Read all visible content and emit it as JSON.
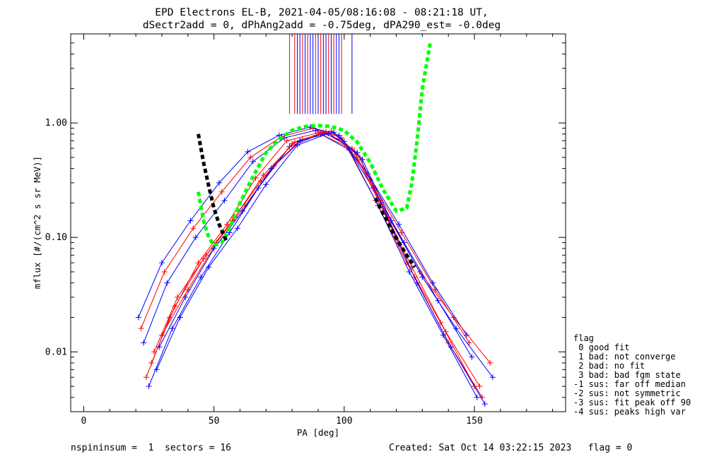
{
  "title_line1": "EPD Electrons EL-B, 2021-04-05/08:16:08 - 08:21:18 UT,",
  "title_line2": "dSectr2add = 0, dPhAng2add = -0.75deg, dPA290_est=  -0.0deg",
  "footer": {
    "left": "nspininsum =  1  sectors = 16",
    "right": "Created: Sat Oct 14 03:22:15 2023   flag = 0"
  },
  "legend": {
    "title": "flag",
    "items": [
      " 0 good fit",
      " 1 bad: not converge",
      " 2 bad: no fit",
      " 3 bad: bad fgm state",
      "-1 sus: far off median",
      "-2 sus: not symmetric",
      "-3 sus: fit peak off 90",
      "-4 sus: peaks high var"
    ]
  },
  "colors": {
    "red_series": "#ff0000",
    "blue_series": "#0000ff",
    "fit_green": "#00ff00",
    "fit_black": "#000000"
  },
  "chart_data": {
    "type": "line",
    "xlabel": "PA [deg]",
    "ylabel": "mflux [#/(cm^2 s sr MeV)]",
    "xlim": [
      -5,
      185
    ],
    "ylim": [
      0.003,
      6.0
    ],
    "yscale": "log",
    "xticks": [
      0,
      50,
      100,
      150
    ],
    "xticklabels": [
      "0",
      "50",
      "100",
      "150"
    ],
    "yticks": [
      0.01,
      0.1,
      1.0
    ],
    "yticklabels": [
      "0.01",
      "0.10",
      "1.00"
    ],
    "grid": false,
    "legend_position": "right-bottom, outside plot",
    "series": [
      {
        "color": "red",
        "x": [
          24,
          33,
          44,
          55,
          66,
          78,
          90,
          101,
          112,
          124,
          137,
          150
        ],
        "y": [
          0.006,
          0.02,
          0.06,
          0.13,
          0.33,
          0.7,
          0.82,
          0.62,
          0.21,
          0.06,
          0.018,
          0.005
        ]
      },
      {
        "color": "blue",
        "x": [
          23,
          32,
          43,
          54,
          65,
          77,
          89,
          100,
          111,
          123,
          136,
          149
        ],
        "y": [
          0.012,
          0.04,
          0.1,
          0.21,
          0.46,
          0.74,
          0.86,
          0.69,
          0.27,
          0.09,
          0.028,
          0.009
        ]
      },
      {
        "color": "red",
        "x": [
          22,
          31,
          42,
          53,
          64,
          76,
          88,
          99,
          110,
          122,
          135,
          148
        ],
        "y": [
          0.016,
          0.05,
          0.12,
          0.25,
          0.5,
          0.76,
          0.9,
          0.74,
          0.32,
          0.11,
          0.035,
          0.012
        ]
      },
      {
        "color": "blue",
        "x": [
          25,
          34,
          45,
          56,
          67,
          79,
          91,
          102,
          113,
          125,
          138,
          151
        ],
        "y": [
          0.005,
          0.016,
          0.045,
          0.11,
          0.27,
          0.62,
          0.8,
          0.58,
          0.19,
          0.05,
          0.014,
          0.004
        ]
      },
      {
        "color": "red",
        "x": [
          27,
          36,
          47,
          58,
          69,
          81,
          93,
          104,
          115,
          127,
          140,
          153
        ],
        "y": [
          0.01,
          0.03,
          0.07,
          0.15,
          0.35,
          0.68,
          0.84,
          0.56,
          0.17,
          0.045,
          0.012,
          0.004
        ]
      },
      {
        "color": "blue",
        "x": [
          21,
          30,
          41,
          52,
          63,
          75,
          87,
          98,
          109,
          121,
          134,
          147
        ],
        "y": [
          0.02,
          0.06,
          0.14,
          0.3,
          0.56,
          0.78,
          0.92,
          0.78,
          0.36,
          0.13,
          0.04,
          0.014
        ]
      },
      {
        "color": "red",
        "x": [
          26,
          35,
          46,
          57,
          68,
          80,
          92,
          103,
          114,
          126,
          139,
          152
        ],
        "y": [
          0.008,
          0.025,
          0.065,
          0.14,
          0.31,
          0.66,
          0.83,
          0.6,
          0.2,
          0.055,
          0.015,
          0.005
        ]
      },
      {
        "color": "blue",
        "x": [
          28,
          37,
          48,
          59,
          70,
          82,
          94,
          105,
          116,
          128,
          141,
          154
        ],
        "y": [
          0.007,
          0.02,
          0.055,
          0.12,
          0.29,
          0.64,
          0.81,
          0.55,
          0.16,
          0.04,
          0.011,
          0.0035
        ]
      },
      {
        "color": "red",
        "x": [
          30,
          40,
          51,
          62,
          73,
          84,
          95,
          106,
          117,
          129,
          142,
          156
        ],
        "y": [
          0.014,
          0.035,
          0.09,
          0.19,
          0.42,
          0.72,
          0.85,
          0.5,
          0.15,
          0.05,
          0.02,
          0.008
        ]
      },
      {
        "color": "blue",
        "x": [
          29,
          39,
          50,
          61,
          72,
          83,
          96,
          107,
          118,
          130,
          143,
          157
        ],
        "y": [
          0.011,
          0.03,
          0.08,
          0.17,
          0.4,
          0.7,
          0.83,
          0.48,
          0.14,
          0.045,
          0.016,
          0.006
        ]
      }
    ],
    "fit_curves": [
      {
        "name": "fit-green",
        "color": "green",
        "x": [
          44,
          46,
          48,
          50,
          53,
          56,
          60,
          65,
          70,
          75,
          80,
          85,
          90,
          95,
          100,
          105,
          110,
          115,
          120,
          124,
          126,
          128,
          130,
          133
        ],
        "y": [
          0.25,
          0.14,
          0.1,
          0.085,
          0.09,
          0.12,
          0.2,
          0.34,
          0.55,
          0.72,
          0.86,
          0.93,
          0.95,
          0.93,
          0.86,
          0.68,
          0.45,
          0.26,
          0.17,
          0.18,
          0.3,
          0.7,
          2.0,
          5.0
        ]
      },
      {
        "name": "fit-black",
        "color": "black",
        "x": [
          44,
          46,
          48,
          50,
          52,
          55
        ],
        "y": [
          0.8,
          0.45,
          0.28,
          0.18,
          0.13,
          0.09
        ]
      },
      {
        "name": "fit-black-right",
        "color": "black",
        "x": [
          112,
          115,
          118,
          121,
          124,
          127
        ],
        "y": [
          0.22,
          0.16,
          0.12,
          0.09,
          0.07,
          0.055
        ]
      }
    ],
    "spikes": {
      "from_y": 1.2,
      "to_y": 6.0,
      "x_red": [
        79,
        81,
        84,
        86,
        89,
        91,
        94,
        96,
        99
      ],
      "x_blue": [
        82,
        83,
        85,
        87,
        88,
        90,
        92,
        93,
        95,
        97,
        98,
        103
      ]
    }
  }
}
